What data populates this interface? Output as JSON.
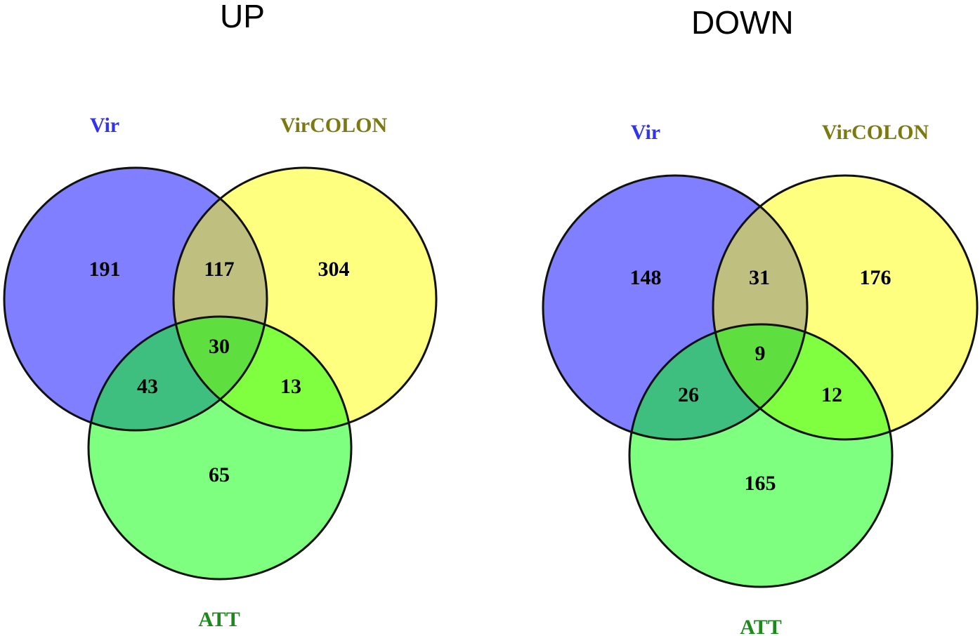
{
  "colors": {
    "vir_fill": "#7f7fff",
    "vircolon_fill": "#ffff7f",
    "att_fill": "#7fff7f",
    "vir_vircolon_fill": "#bfbf7f",
    "vir_att_fill": "#3fbf7f",
    "vircolon_att_fill": "#7fff3f",
    "all_three_fill": "#5fdf3f",
    "vir_label": "#3333ee",
    "vircolon_label": "#7a7a10",
    "att_label": "#1a8a1a",
    "outline": "#111111"
  },
  "panels": [
    {
      "title": "UP",
      "labels": {
        "vir": "Vir",
        "vircolon": "VirCOLON",
        "att": "ATT"
      },
      "counts": {
        "vir_only": "191",
        "vir_vircolon": "117",
        "vircolon_only": "304",
        "all_three": "30",
        "vir_att": "43",
        "vircolon_att": "13",
        "att_only": "65"
      }
    },
    {
      "title": "DOWN",
      "labels": {
        "vir": "Vir",
        "vircolon": "VirCOLON",
        "att": "ATT"
      },
      "counts": {
        "vir_only": "148",
        "vir_vircolon": "31",
        "vircolon_only": "176",
        "all_three": "9",
        "vir_att": "26",
        "vircolon_att": "12",
        "att_only": "165"
      }
    }
  ]
}
